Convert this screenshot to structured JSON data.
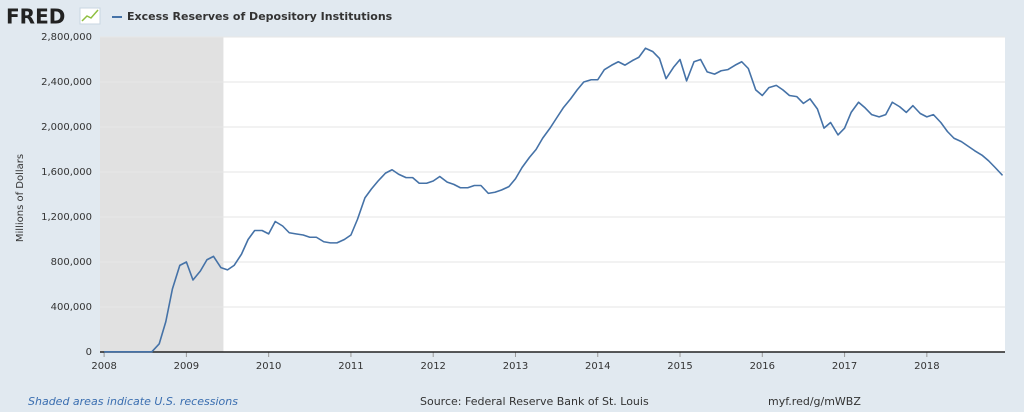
{
  "chart_data": {
    "type": "line",
    "logo": "FRED",
    "ylabel": "Millions of Dollars",
    "recession_note": "Shaded areas indicate U.S. recessions",
    "source": "Source: Federal Reserve Bank of St. Louis",
    "link": "myf.red/g/mWBZ",
    "recessions": [
      [
        2007.95,
        2009.45
      ]
    ],
    "recession_color": "#e1e1e1",
    "grid": true,
    "xlim": [
      2007.95,
      2018.95
    ],
    "xticks": [
      2008,
      2009,
      2010,
      2011,
      2012,
      2013,
      2014,
      2015,
      2016,
      2017,
      2018
    ],
    "ylim": [
      0,
      2800000
    ],
    "yticks": [
      0,
      {
        "value": 400000,
        "label": "400,000"
      },
      {
        "value": 800000,
        "label": "800,000"
      },
      {
        "value": 1200000,
        "label": "1,200,000"
      },
      {
        "value": 1600000,
        "label": "1,600,000"
      },
      {
        "value": 2000000,
        "label": "2,000,000"
      },
      {
        "value": 2400000,
        "label": "2,400,000"
      },
      {
        "value": 2800000,
        "label": "2,800,000"
      }
    ],
    "x": [
      2008.0,
      2008.08,
      2008.17,
      2008.25,
      2008.33,
      2008.42,
      2008.5,
      2008.58,
      2008.67,
      2008.75,
      2008.83,
      2008.92,
      2009.0,
      2009.08,
      2009.17,
      2009.25,
      2009.33,
      2009.42,
      2009.5,
      2009.58,
      2009.67,
      2009.75,
      2009.83,
      2009.92,
      2010.0,
      2010.08,
      2010.17,
      2010.25,
      2010.33,
      2010.42,
      2010.5,
      2010.58,
      2010.67,
      2010.75,
      2010.83,
      2010.92,
      2011.0,
      2011.08,
      2011.17,
      2011.25,
      2011.33,
      2011.42,
      2011.5,
      2011.58,
      2011.67,
      2011.75,
      2011.83,
      2011.92,
      2012.0,
      2012.08,
      2012.17,
      2012.25,
      2012.33,
      2012.42,
      2012.5,
      2012.58,
      2012.67,
      2012.75,
      2012.83,
      2012.92,
      2013.0,
      2013.08,
      2013.17,
      2013.25,
      2013.33,
      2013.42,
      2013.5,
      2013.58,
      2013.67,
      2013.75,
      2013.83,
      2013.92,
      2014.0,
      2014.08,
      2014.17,
      2014.25,
      2014.33,
      2014.42,
      2014.5,
      2014.58,
      2014.67,
      2014.75,
      2014.83,
      2014.92,
      2015.0,
      2015.08,
      2015.17,
      2015.25,
      2015.33,
      2015.42,
      2015.5,
      2015.58,
      2015.67,
      2015.75,
      2015.83,
      2015.92,
      2016.0,
      2016.08,
      2016.17,
      2016.25,
      2016.33,
      2016.42,
      2016.5,
      2016.58,
      2016.67,
      2016.75,
      2016.83,
      2016.92,
      2017.0,
      2017.08,
      2017.17,
      2017.25,
      2017.33,
      2017.42,
      2017.5,
      2017.58,
      2017.67,
      2017.75,
      2017.83,
      2017.92,
      2018.0,
      2018.08,
      2018.17,
      2018.25,
      2018.33,
      2018.42,
      2018.5,
      2018.58,
      2018.67,
      2018.75,
      2018.83,
      2018.92
    ],
    "series": [
      {
        "name": "Excess Reserves of Depository Institutions",
        "color": "#4572a7",
        "values": [
          2000,
          2000,
          2000,
          2000,
          2000,
          2000,
          2000,
          2000,
          73000,
          270000,
          560000,
          770000,
          800000,
          640000,
          720000,
          820000,
          850000,
          750000,
          730000,
          770000,
          870000,
          1000000,
          1080000,
          1080000,
          1050000,
          1160000,
          1120000,
          1060000,
          1050000,
          1040000,
          1020000,
          1020000,
          980000,
          970000,
          970000,
          1000000,
          1040000,
          1180000,
          1370000,
          1450000,
          1520000,
          1590000,
          1620000,
          1580000,
          1550000,
          1550000,
          1500000,
          1500000,
          1520000,
          1560000,
          1510000,
          1490000,
          1460000,
          1460000,
          1480000,
          1480000,
          1410000,
          1420000,
          1440000,
          1470000,
          1540000,
          1640000,
          1730000,
          1800000,
          1900000,
          1990000,
          2080000,
          2170000,
          2250000,
          2330000,
          2400000,
          2420000,
          2420000,
          2510000,
          2550000,
          2580000,
          2550000,
          2590000,
          2620000,
          2700000,
          2670000,
          2610000,
          2430000,
          2530000,
          2600000,
          2410000,
          2580000,
          2600000,
          2490000,
          2470000,
          2500000,
          2510000,
          2550000,
          2580000,
          2520000,
          2330000,
          2280000,
          2350000,
          2370000,
          2330000,
          2280000,
          2270000,
          2210000,
          2250000,
          2160000,
          1990000,
          2040000,
          1930000,
          1990000,
          2130000,
          2220000,
          2170000,
          2110000,
          2090000,
          2110000,
          2220000,
          2180000,
          2130000,
          2190000,
          2120000,
          2090000,
          2110000,
          2040000,
          1960000,
          1900000,
          1870000,
          1830000,
          1790000,
          1750000,
          1700000,
          1640000,
          1570000
        ]
      }
    ]
  }
}
